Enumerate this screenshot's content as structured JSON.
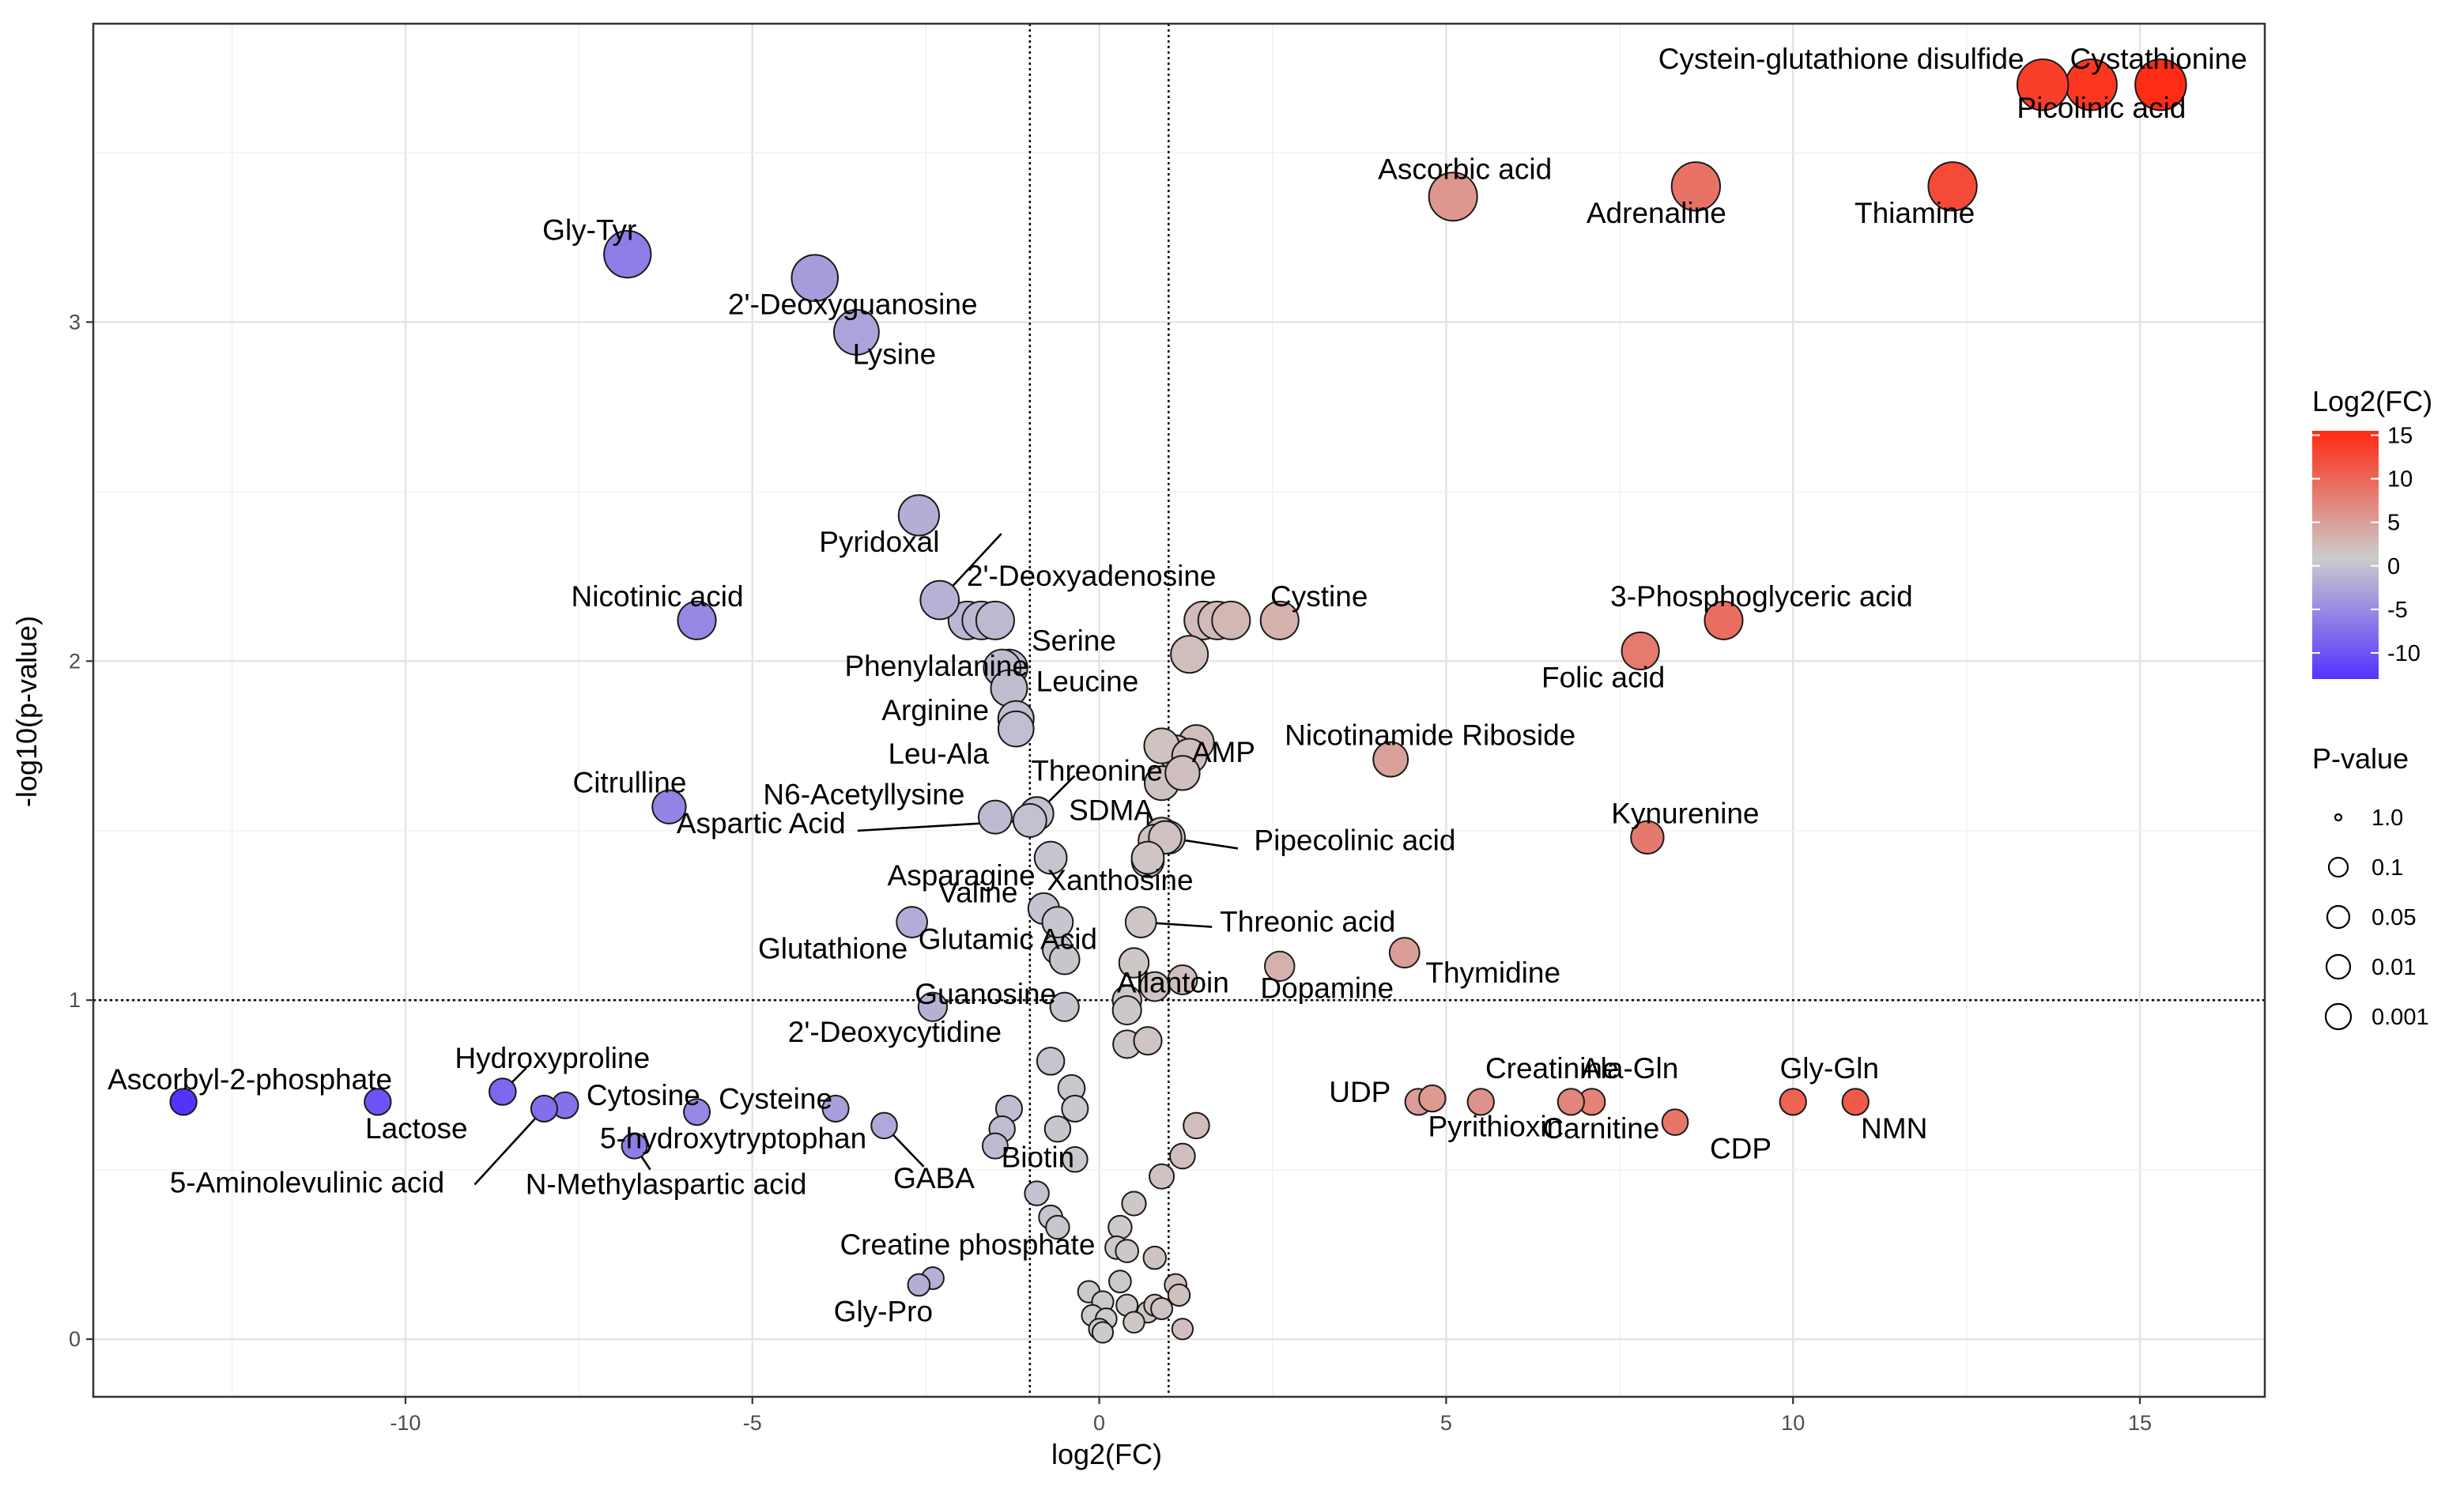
{
  "chart_data": {
    "type": "scatter",
    "title": "",
    "xlabel": "log2(FC)",
    "ylabel": "-log10(p-value)",
    "xlim": [
      -14.5,
      16.8
    ],
    "ylim": [
      -0.17,
      3.88
    ],
    "x_ticks": [
      -10,
      -5,
      0,
      5,
      10,
      15
    ],
    "x_tick_labels": [
      "-10",
      "-5",
      "0",
      "5",
      "10",
      "15"
    ],
    "y_ticks": [
      0,
      1,
      2,
      3
    ],
    "y_tick_labels": [
      "0",
      "1",
      "2",
      "3"
    ],
    "grid": true,
    "thresholds": {
      "x": [
        -1,
        1
      ],
      "y": 1
    },
    "color_scale": {
      "title": "Log2(FC)",
      "min": -13,
      "max": 15.5,
      "low_color": "#5533ff",
      "mid_color": "#cccccc",
      "high_color": "#ff2a12",
      "ticks": [
        "15",
        "10",
        "5",
        "0",
        "-5",
        "-10"
      ]
    },
    "size_legend": {
      "title": "P-value",
      "entries": [
        "1.0",
        "0.1",
        "0.05",
        "0.01",
        "0.001"
      ]
    },
    "labeled_points": [
      {
        "label": "Cystathionine",
        "x": 14.3,
        "y": 3.7
      },
      {
        "label": "Cystein-glutathione disulfide",
        "x": 13.6,
        "y": 3.7
      },
      {
        "label": "Picolinic acid",
        "x": 15.3,
        "y": 3.7
      },
      {
        "label": "Ascorbic acid",
        "x": 5.1,
        "y": 3.37
      },
      {
        "label": "Adrenaline",
        "x": 8.6,
        "y": 3.4
      },
      {
        "label": "Thiamine",
        "x": 12.3,
        "y": 3.4
      },
      {
        "label": "Gly-Tyr",
        "x": -6.8,
        "y": 3.2
      },
      {
        "label": "2'-Deoxyguanosine",
        "x": -4.1,
        "y": 3.13
      },
      {
        "label": "Lysine",
        "x": -3.5,
        "y": 2.97
      },
      {
        "label": "Pyridoxal",
        "x": -2.6,
        "y": 2.43
      },
      {
        "label": "Nicotinic acid",
        "x": -5.8,
        "y": 2.12
      },
      {
        "label": "2'-Deoxyadenosine",
        "x": -2.3,
        "y": 2.18
      },
      {
        "label": "Cystine",
        "x": 2.6,
        "y": 2.12
      },
      {
        "label": "3-Phosphoglyceric acid",
        "x": 9.0,
        "y": 2.12
      },
      {
        "label": "Folic acid",
        "x": 7.8,
        "y": 2.03
      },
      {
        "label": "Serine",
        "x": -1.3,
        "y": 1.98
      },
      {
        "label": "Phenylalanine",
        "x": -1.4,
        "y": 1.98
      },
      {
        "label": "Leucine",
        "x": -1.3,
        "y": 1.92
      },
      {
        "label": "Arginine",
        "x": -1.2,
        "y": 1.83
      },
      {
        "label": "Leu-Ala",
        "x": -1.2,
        "y": 1.8
      },
      {
        "label": "Nicotinamide Riboside",
        "x": 4.2,
        "y": 1.71
      },
      {
        "label": "Threonine",
        "x": -0.9,
        "y": 1.55
      },
      {
        "label": "SDMA",
        "x": -0.9,
        "y": 1.55
      },
      {
        "label": "N6-Acetyllysine",
        "x": -1.5,
        "y": 1.54
      },
      {
        "label": "AMP",
        "x": 1.2,
        "y": 1.67
      },
      {
        "label": "Citrulline",
        "x": -6.2,
        "y": 1.57
      },
      {
        "label": "Kynurenine",
        "x": 7.9,
        "y": 1.48
      },
      {
        "label": "Aspartic Acid",
        "x": -1.0,
        "y": 1.53
      },
      {
        "label": "Pipecolinic acid",
        "x": 0.95,
        "y": 1.48
      },
      {
        "label": "Asparagine",
        "x": -0.7,
        "y": 1.42
      },
      {
        "label": "Xanthosine",
        "x": 0.7,
        "y": 1.42
      },
      {
        "label": "Valine",
        "x": -0.8,
        "y": 1.27
      },
      {
        "label": "Threonic acid",
        "x": 0.6,
        "y": 1.23
      },
      {
        "label": "Glutathione",
        "x": -2.7,
        "y": 1.23
      },
      {
        "label": "Glutamic Acid",
        "x": -0.6,
        "y": 1.23
      },
      {
        "label": "Thymidine",
        "x": 4.4,
        "y": 1.14
      },
      {
        "label": "Dopamine",
        "x": 2.6,
        "y": 1.1
      },
      {
        "label": "Allantoin",
        "x": 1.2,
        "y": 1.06
      },
      {
        "label": "Guanosine",
        "x": -0.5,
        "y": 0.98
      },
      {
        "label": "2'-Deoxycytidine",
        "x": -2.4,
        "y": 0.98
      },
      {
        "label": "Hydroxyproline",
        "x": -8.6,
        "y": 0.73
      },
      {
        "label": "Ascorbyl-2-phosphate",
        "x": -13.2,
        "y": 0.7
      },
      {
        "label": "Cytosine",
        "x": -7.7,
        "y": 0.69
      },
      {
        "label": "Cysteine",
        "x": -3.8,
        "y": 0.68
      },
      {
        "label": "Lactose",
        "x": -10.4,
        "y": 0.7
      },
      {
        "label": "5-hydroxytryptophan",
        "x": -5.8,
        "y": 0.67
      },
      {
        "label": "5-Aminolevulinic acid",
        "x": -8.0,
        "y": 0.68
      },
      {
        "label": "N-Methylaspartic acid",
        "x": -6.7,
        "y": 0.57
      },
      {
        "label": "GABA",
        "x": -3.1,
        "y": 0.63
      },
      {
        "label": "Biotin",
        "x": -0.35,
        "y": 0.68
      },
      {
        "label": "UDP",
        "x": 4.6,
        "y": 0.7
      },
      {
        "label": "Creatinine",
        "x": 5.5,
        "y": 0.7
      },
      {
        "label": "Pyrithioxin",
        "x": 4.8,
        "y": 0.71
      },
      {
        "label": "Ala-Gln",
        "x": 7.1,
        "y": 0.7
      },
      {
        "label": "Carnitine",
        "x": 6.8,
        "y": 0.7
      },
      {
        "label": "Gly-Gln",
        "x": 10.0,
        "y": 0.7
      },
      {
        "label": "CDP",
        "x": 8.3,
        "y": 0.64
      },
      {
        "label": "NMN",
        "x": 10.9,
        "y": 0.7
      },
      {
        "label": "Creatine phosphate",
        "x": -2.4,
        "y": 0.18
      },
      {
        "label": "Gly-Pro",
        "x": -2.6,
        "y": 0.16
      }
    ],
    "unlabeled_points": [
      [
        -1.9,
        2.12
      ],
      [
        -1.7,
        2.12
      ],
      [
        -1.5,
        2.12
      ],
      [
        1.5,
        2.12
      ],
      [
        1.7,
        2.12
      ],
      [
        1.9,
        2.12
      ],
      [
        1.3,
        2.02
      ],
      [
        1.4,
        1.76
      ],
      [
        1.1,
        1.73
      ],
      [
        0.9,
        1.75
      ],
      [
        0.9,
        1.64
      ],
      [
        1.3,
        1.72
      ],
      [
        0.9,
        1.49
      ],
      [
        1.0,
        1.48
      ],
      [
        0.8,
        1.47
      ],
      [
        0.7,
        1.41
      ],
      [
        -0.6,
        1.15
      ],
      [
        -0.5,
        1.12
      ],
      [
        0.5,
        1.11
      ],
      [
        0.8,
        1.04
      ],
      [
        0.4,
        1.0
      ],
      [
        0.4,
        0.97
      ],
      [
        0.4,
        0.87
      ],
      [
        0.7,
        0.88
      ],
      [
        -0.7,
        0.82
      ],
      [
        -0.4,
        0.74
      ],
      [
        -1.3,
        0.68
      ],
      [
        -1.4,
        0.62
      ],
      [
        -0.6,
        0.62
      ],
      [
        -1.5,
        0.57
      ],
      [
        1.4,
        0.63
      ],
      [
        1.2,
        0.54
      ],
      [
        -0.35,
        0.53
      ],
      [
        0.9,
        0.48
      ],
      [
        -0.9,
        0.43
      ],
      [
        0.5,
        0.4
      ],
      [
        -0.7,
        0.36
      ],
      [
        -0.6,
        0.33
      ],
      [
        0.3,
        0.33
      ],
      [
        0.25,
        0.27
      ],
      [
        0.4,
        0.26
      ],
      [
        0.8,
        0.24
      ],
      [
        1.1,
        0.16
      ],
      [
        1.15,
        0.13
      ],
      [
        0.3,
        0.17
      ],
      [
        -0.15,
        0.14
      ],
      [
        0.05,
        0.11
      ],
      [
        0.4,
        0.1
      ],
      [
        0.7,
        0.08
      ],
      [
        0.8,
        0.1
      ],
      [
        0.9,
        0.09
      ],
      [
        -0.1,
        0.07
      ],
      [
        0.1,
        0.06
      ],
      [
        0.5,
        0.05
      ],
      [
        0.0,
        0.03
      ],
      [
        0.05,
        0.02
      ],
      [
        1.2,
        0.03
      ]
    ]
  }
}
